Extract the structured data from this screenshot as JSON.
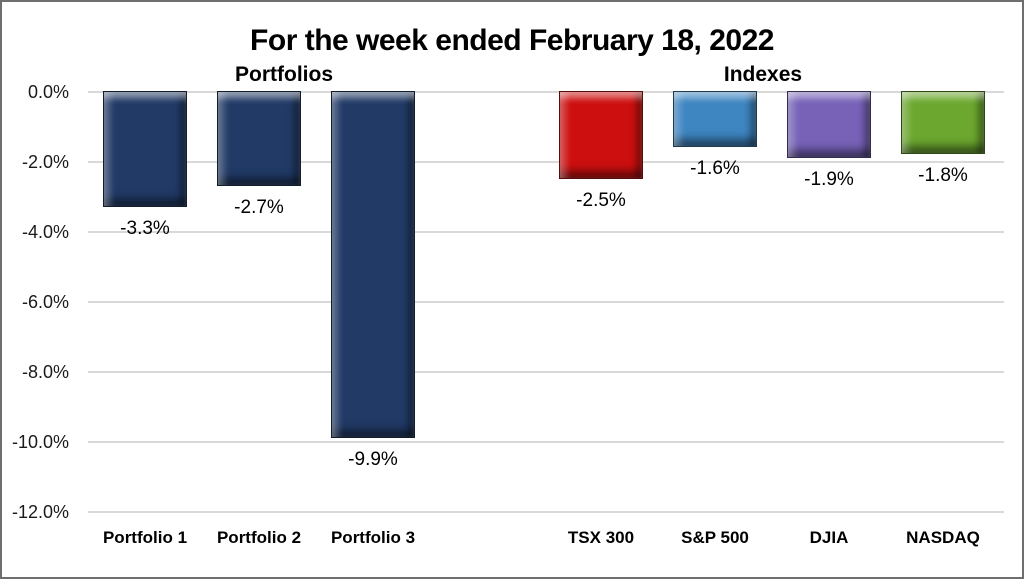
{
  "page": {
    "background": "#ffffff",
    "border_color": "#6e6e6e"
  },
  "chart_data": {
    "type": "bar",
    "title": "For the week ended February 18, 2022",
    "group_labels": [
      {
        "label": "Portfolios"
      },
      {
        "label": "Indexes"
      }
    ],
    "categories": [
      "Portfolio 1",
      "Portfolio 2",
      "Portfolio 3",
      "",
      "TSX 300",
      "S&P 500",
      "DJIA",
      "NASDAQ"
    ],
    "values": [
      -3.3,
      -2.7,
      -9.9,
      null,
      -2.5,
      -1.6,
      -1.9,
      -1.8
    ],
    "data_labels": [
      "-3.3%",
      "-2.7%",
      "-9.9%",
      "",
      "-2.5%",
      "-1.6%",
      "-1.9%",
      "-1.8%"
    ],
    "bar_colors": [
      "#213a66",
      "#213a66",
      "#213a66",
      null,
      "#cd0f0f",
      "#3e86c2",
      "#7762b8",
      "#6ca82f"
    ],
    "ytick_labels": [
      "0.0%",
      "-2.0%",
      "-4.0%",
      "-6.0%",
      "-8.0%",
      "-10.0%",
      "-12.0%"
    ],
    "ylim": [
      0,
      -12
    ],
    "ytick_step": -2,
    "xlabel": "",
    "ylabel": "",
    "grid": true,
    "gridline_color": "#d9d9d9",
    "legend": "none",
    "bar_style": "3d-bevel"
  }
}
